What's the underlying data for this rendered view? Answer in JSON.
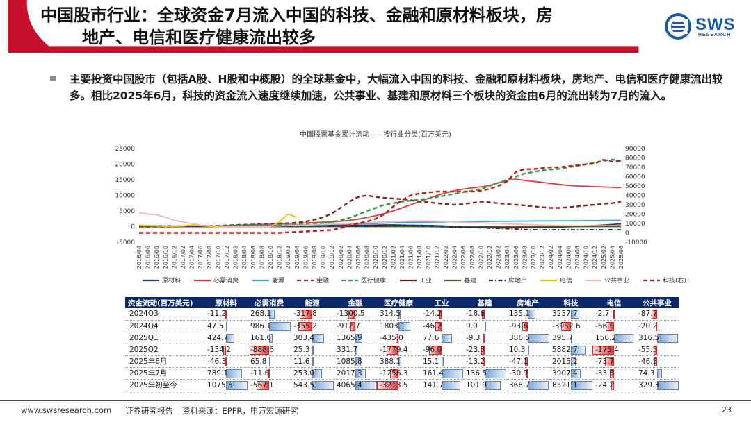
{
  "header": {
    "title_line1": "中国股市行业：全球资金7月流入中国的科技、金融和原材料板块，房",
    "title_line2": "地产、电信和医疗健康流出较多",
    "logo_text": "SWS",
    "logo_sub": "RESEARCH",
    "accent": "#c8102e"
  },
  "body": {
    "paragraph": "主要投资中国股市（包括A股、H股和中概股）的全球基金中，大幅流入中国的科技、金融和原材料板块，房地产、电信和医疗健康流出较多。相比2025年6月，科技的资金流入速度继续加速，公共事业、基建和原材料三个板块的资金由6月的流出转为7月的流入。"
  },
  "chart_data": [
    {
      "type": "line",
      "title": "中国股票基金累计流动——按行业分类(百万美元)",
      "x": [
        "2016/04",
        "2016/06",
        "2016/08",
        "2016/10",
        "2016/12",
        "2017/02",
        "2017/04",
        "2017/06",
        "2017/08",
        "2017/10",
        "2017/12",
        "2018/02",
        "2018/04",
        "2018/06",
        "2018/08",
        "2018/10",
        "2018/12",
        "2019/02",
        "2019/04",
        "2019/06",
        "2019/08",
        "2019/10",
        "2019/12",
        "2020/02",
        "2020/04",
        "2020/06",
        "2020/08",
        "2020/10",
        "2020/12",
        "2021/02",
        "2021/04",
        "2021/06",
        "2021/08",
        "2021/10",
        "2021/12",
        "2022/02",
        "2022/04",
        "2022/06",
        "2022/08",
        "2022/10",
        "2022/12",
        "2023/02",
        "2023/04",
        "2023/06",
        "2023/08",
        "2023/10",
        "2023/12",
        "2024/02",
        "2024/04",
        "2024/06",
        "2024/08",
        "2024/10",
        "2024/12",
        "2025/02",
        "2025/04",
        "2025/06"
      ],
      "ylim_left": [
        -5000,
        25000
      ],
      "yticks_left": [
        "25000",
        "20000",
        "15000",
        "10000",
        "5000",
        "0",
        "-5000"
      ],
      "ylim_right": [
        -10000,
        90000
      ],
      "yticks_right": [
        "90000",
        "80000",
        "70000",
        "60000",
        "50000",
        "40000",
        "30000",
        "20000",
        "10000",
        "0",
        "-10000"
      ],
      "legend_position": "bottom",
      "series": [
        {
          "name": "原材料",
          "color": "#1f3f7a",
          "dash": "solid",
          "axis": "left",
          "values": [
            200,
            200,
            150,
            100,
            100,
            50,
            0,
            0,
            0,
            50,
            100,
            100,
            150,
            150,
            200,
            200,
            200,
            250,
            250,
            300,
            300,
            300,
            350,
            400,
            400,
            450,
            450,
            500,
            550,
            550,
            500,
            450,
            400,
            350,
            300,
            200,
            100,
            0,
            -100,
            -200,
            -300,
            -300,
            -250,
            -200,
            -150,
            -100,
            -50,
            0,
            50,
            100,
            150,
            250,
            350,
            500,
            700,
            900
          ]
        },
        {
          "name": "必需消费",
          "color": "#e23b3b",
          "dash": "solid",
          "axis": "left",
          "values": [
            0,
            0,
            0,
            0,
            50,
            50,
            100,
            100,
            150,
            200,
            300,
            400,
            500,
            600,
            700,
            800,
            900,
            1000,
            1100,
            1200,
            1300,
            1400,
            1500,
            1700,
            2000,
            2400,
            2900,
            3500,
            4200,
            5000,
            6000,
            7000,
            8000,
            9000,
            10000,
            10800,
            11500,
            12000,
            12400,
            12700,
            13200,
            14000,
            14800,
            15200,
            14800,
            14500,
            14200,
            13800,
            13500,
            13200,
            13000,
            12900,
            12800,
            12700,
            12600,
            12500
          ]
        },
        {
          "name": "能源",
          "color": "#3fa3d6",
          "dash": "solid",
          "axis": "left",
          "values": [
            0,
            0,
            0,
            0,
            0,
            0,
            0,
            50,
            50,
            100,
            150,
            200,
            250,
            300,
            350,
            400,
            450,
            500,
            550,
            600,
            650,
            700,
            750,
            800,
            850,
            900,
            950,
            1000,
            1100,
            1200,
            1300,
            1350,
            1400,
            1450,
            1500,
            1500,
            1550,
            1600,
            1600,
            1650,
            1650,
            1700,
            1700,
            1750,
            1750,
            1800,
            1800,
            1800,
            1850,
            1850,
            1850,
            1900,
            1900,
            1950,
            1950,
            2000
          ]
        },
        {
          "name": "金融",
          "color": "#8b2323",
          "dash": "dashed",
          "axis": "left",
          "values": [
            0,
            0,
            0,
            0,
            50,
            100,
            150,
            200,
            250,
            300,
            400,
            500,
            600,
            700,
            800,
            900,
            1000,
            1100,
            1300,
            1600,
            2200,
            3000,
            4200,
            6000,
            8000,
            9500,
            10000,
            9500,
            9200,
            9000,
            8800,
            8500,
            8000,
            7800,
            7500,
            7200,
            7000,
            7200,
            7600,
            8000,
            7800,
            7500,
            7200,
            7000,
            6800,
            6500,
            6200,
            6000,
            6000,
            6200,
            6500,
            6800,
            7000,
            7300,
            7500,
            8000
          ]
        },
        {
          "name": "医疗健康",
          "color": "#2e9e4a",
          "dash": "dashed",
          "axis": "left",
          "values": [
            0,
            0,
            0,
            0,
            0,
            50,
            100,
            150,
            200,
            250,
            300,
            350,
            400,
            450,
            500,
            550,
            600,
            700,
            800,
            900,
            1000,
            1200,
            1500,
            2000,
            2800,
            3800,
            5000,
            6000,
            7000,
            7500,
            8000,
            8300,
            8600,
            9000,
            9500,
            10000,
            10500,
            11000,
            11500,
            12000,
            13000,
            14000,
            15000,
            16000,
            17000,
            17500,
            18000,
            18300,
            18500,
            19000,
            19500,
            20000,
            20500,
            21000,
            21500,
            21000
          ]
        },
        {
          "name": "工业",
          "color": "#7a0f0f",
          "dash": "solid",
          "axis": "left",
          "values": [
            0,
            0,
            0,
            0,
            0,
            0,
            0,
            0,
            0,
            0,
            0,
            0,
            0,
            0,
            0,
            0,
            0,
            0,
            0,
            0,
            50,
            100,
            150,
            200,
            250,
            300,
            300,
            300,
            250,
            200,
            150,
            100,
            50,
            0,
            -50,
            -100,
            -150,
            -200,
            -250,
            -300,
            -350,
            -400,
            -400,
            -400,
            -350,
            -300,
            -250,
            -200,
            -150,
            -100,
            0,
            100,
            200,
            250,
            300,
            400
          ]
        },
        {
          "name": "基建",
          "color": "#4a5a2a",
          "dash": "solid",
          "axis": "left",
          "values": [
            0,
            0,
            0,
            0,
            0,
            0,
            0,
            0,
            0,
            0,
            0,
            0,
            0,
            0,
            0,
            0,
            0,
            0,
            0,
            0,
            0,
            0,
            0,
            0,
            0,
            0,
            0,
            0,
            0,
            0,
            0,
            0,
            0,
            0,
            0,
            0,
            0,
            0,
            0,
            0,
            0,
            0,
            0,
            0,
            0,
            0,
            0,
            0,
            0,
            0,
            0,
            0,
            0,
            0,
            0,
            0
          ]
        },
        {
          "name": "房地产",
          "color": "#0b2a6b",
          "dash": "dashdot",
          "axis": "left",
          "values": [
            300,
            300,
            250,
            250,
            200,
            200,
            150,
            150,
            150,
            150,
            150,
            150,
            150,
            150,
            150,
            150,
            150,
            150,
            150,
            150,
            150,
            150,
            150,
            150,
            150,
            150,
            150,
            200,
            250,
            300,
            300,
            300,
            250,
            200,
            100,
            0,
            -100,
            -200,
            -300,
            -400,
            -500,
            -600,
            -700,
            -800,
            -900,
            -1000,
            -1000,
            -1000,
            -1000,
            -1000,
            -1000,
            -1000,
            -1000,
            -1000,
            -1000,
            -1000
          ]
        },
        {
          "name": "电信",
          "color": "#f2b90f",
          "dash": "solid",
          "axis": "left",
          "values": [
            500,
            300,
            200,
            100,
            100,
            200,
            500,
            300,
            100,
            0,
            0,
            0,
            0,
            0,
            0,
            0,
            1500,
            4000,
            3000,
            null,
            null,
            null,
            null,
            null,
            null,
            null,
            null,
            null,
            null,
            null,
            null,
            null,
            null,
            null,
            null,
            null,
            null,
            null,
            null,
            null,
            null,
            null,
            null,
            null,
            null,
            null,
            null,
            null,
            null,
            null,
            null,
            null,
            null,
            null,
            null,
            null
          ]
        },
        {
          "name": "公共事业",
          "color": "#f4b6b6",
          "dash": "solid",
          "axis": "left",
          "values": [
            4500,
            4000,
            3800,
            3000,
            2000,
            1500,
            1000,
            500,
            300,
            200,
            100,
            100,
            100,
            100,
            100,
            100,
            200,
            300,
            400,
            500,
            600,
            700,
            800,
            900,
            1000,
            1200,
            1300,
            1400,
            1500,
            1600,
            1700,
            1800,
            1800,
            1800,
            1700,
            1600,
            1500,
            1400,
            1300,
            1200,
            1100,
            1000,
            900,
            800,
            700,
            600,
            500,
            400,
            300,
            300,
            300,
            300,
            300,
            300,
            300,
            300
          ]
        },
        {
          "name": "科技(右)",
          "color": "#c01818",
          "dash": "dashed",
          "axis": "right",
          "values": [
            0,
            0,
            0,
            0,
            0,
            0,
            0,
            0,
            0,
            0,
            0,
            0,
            0,
            0,
            0,
            0,
            0,
            500,
            1000,
            1500,
            2000,
            2500,
            3000,
            5000,
            8000,
            10000,
            12000,
            15000,
            20000,
            28000,
            35000,
            40000,
            42000,
            43000,
            44000,
            44000,
            44000,
            44000,
            44000,
            45000,
            47000,
            50000,
            55000,
            65000,
            68000,
            68000,
            69000,
            70000,
            70000,
            71000,
            72000,
            73000,
            74000,
            78000,
            76000,
            77000
          ]
        }
      ]
    },
    {
      "type": "table",
      "corner_label": "资金流动(百万美元)",
      "columns": [
        "原材料",
        "必需消费",
        "能源",
        "金融",
        "医疗健康",
        "工业",
        "基建",
        "房地产",
        "科技",
        "电信",
        "公共事业"
      ],
      "rows": [
        {
          "label": "2024Q3",
          "values": [
            "-11.2",
            "268.1",
            "-317.8",
            "-1300.5",
            "314.5",
            "-14.2",
            "-18.6",
            "135.1",
            "3237.7",
            "-2.7",
            "-87.7"
          ]
        },
        {
          "label": "2024Q4",
          "values": [
            "47.5",
            "986.1",
            "-355.2",
            "-912.7",
            "1803.1",
            "-46.2",
            "9.0",
            "-93.6",
            "-3952.6",
            "-66.6",
            "-20.2"
          ]
        },
        {
          "label": "2025Q1",
          "values": [
            "424.7",
            "161.6",
            "303.4",
            "1365.9",
            "-435.0",
            "77.6",
            "-9.3",
            "386.5",
            "395.7",
            "156.2",
            "316.5"
          ]
        },
        {
          "label": "2025Q2",
          "values": [
            "-134.2",
            "-888.6",
            "25.3",
            "331.7",
            "-1779.4",
            "-96.0",
            "-23.3",
            "10.3",
            "5882.7",
            "-175.4",
            "-55.5"
          ]
        },
        {
          "label": "2025年6月",
          "values": [
            "-46.3",
            "65.8",
            "11.6",
            "1085.8",
            "388.1",
            "15.1",
            "-13.2",
            "-47.1",
            "2015.2",
            "-73.7",
            "-46.5"
          ]
        },
        {
          "label": "2025年7月",
          "values": [
            "789.1",
            "-11.6",
            "253.0",
            "2017.3",
            "-1256.3",
            "161.4",
            "136.5",
            "-30.9",
            "3907.4",
            "-33.5",
            "74.3"
          ]
        },
        {
          "label": "2025年初至今",
          "values": [
            "1075.5",
            "-567.1",
            "543.5",
            "4065.4",
            "-3213.5",
            "141.7",
            "101.9",
            "368.7",
            "8521.1",
            "-24.2",
            "329.3"
          ]
        }
      ]
    }
  ],
  "footer": {
    "website": "www.swsresearch.com",
    "report_type": "证券研究报告",
    "source": "资料来源：EPFR，申万宏源研究",
    "page": "23"
  }
}
